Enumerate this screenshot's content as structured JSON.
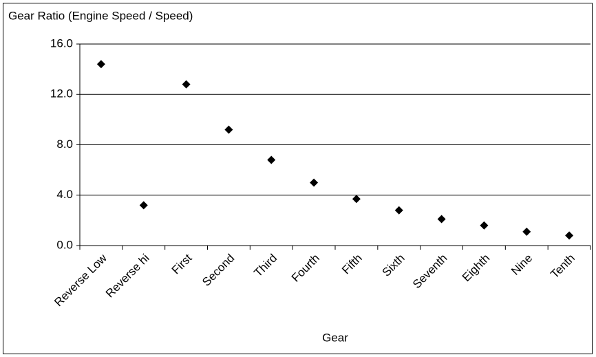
{
  "chart_data": {
    "type": "scatter",
    "title": "Gear Ratio (Engine Speed / Speed)",
    "x_label": "Gear",
    "categories": [
      "Reverse Low",
      "Reverse hi",
      "First",
      "Second",
      "Third",
      "Fourth",
      "Fifth",
      "Sixth",
      "Seventh",
      "Eighth",
      "Nine",
      "Tenth"
    ],
    "values": [
      14.4,
      3.2,
      12.8,
      9.2,
      6.8,
      5.0,
      3.7,
      2.8,
      2.1,
      1.6,
      1.1,
      0.8
    ],
    "color": "#000000",
    "ylim": [
      0,
      16
    ],
    "yticks": [
      {
        "value": 0,
        "label": "0.0"
      },
      {
        "value": 4,
        "label": "4.0"
      },
      {
        "value": 8,
        "label": "8.0"
      },
      {
        "value": 12,
        "label": "12.0"
      },
      {
        "value": 16,
        "label": "16.0"
      }
    ],
    "grid": true
  }
}
